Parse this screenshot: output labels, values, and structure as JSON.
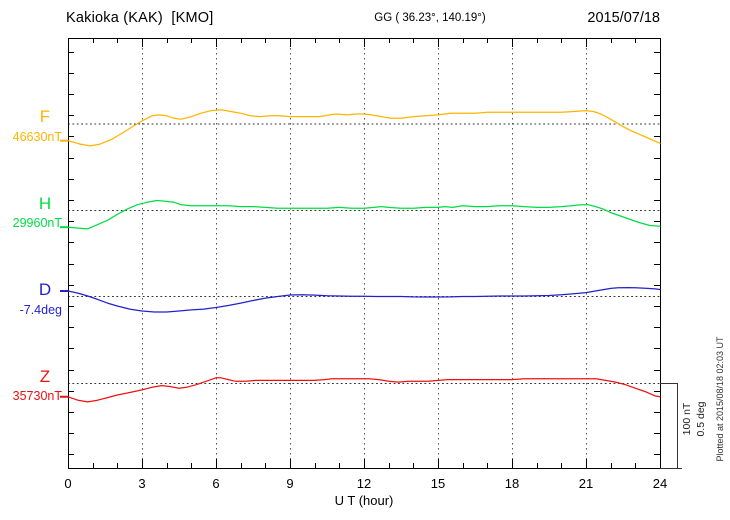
{
  "header": {
    "station": "Kakioka (KAK)  [KMO]",
    "coordinates": "GG ( 36.23°, 140.19°)",
    "date": "2015/07/18"
  },
  "xaxis": {
    "label": "U T (hour)"
  },
  "scalebar": {
    "scale_nt": "100 nT",
    "scale_deg": "0.5 deg"
  },
  "plotted_at": "Plotted at 2015/08/18 02:03 UT",
  "chart_data": {
    "type": "line",
    "title": "Kakioka (KAK) [KMO] magnetogram 2015/07/18",
    "xlabel": "U T (hour)",
    "x_range": [
      0,
      24
    ],
    "x_ticks": [
      0,
      3,
      6,
      9,
      12,
      15,
      18,
      21,
      24
    ],
    "grid": "dotted vertical gridlines every 3 h; dotted horizontal baseline per component",
    "legend_position": "left margin labels",
    "scale_per_division": {
      "nT": 100,
      "deg": 0.5
    },
    "series": [
      {
        "name": "F",
        "label": "F",
        "value_label": "46630nT",
        "baseline_value": 46630,
        "unit": "nT",
        "color": "#ffb400",
        "points": [
          [
            0,
            -20
          ],
          [
            0.5,
            -24
          ],
          [
            0.9,
            -26
          ],
          [
            1.3,
            -24
          ],
          [
            1.8,
            -18
          ],
          [
            2.2,
            -11
          ],
          [
            2.6,
            -4
          ],
          [
            3,
            3
          ],
          [
            3.4,
            9
          ],
          [
            3.7,
            10
          ],
          [
            4,
            9
          ],
          [
            4.3,
            6
          ],
          [
            4.6,
            5
          ],
          [
            5,
            8
          ],
          [
            5.4,
            12
          ],
          [
            5.8,
            15
          ],
          [
            6.2,
            16
          ],
          [
            6.6,
            14
          ],
          [
            7,
            12
          ],
          [
            7.4,
            9
          ],
          [
            7.8,
            8
          ],
          [
            8.2,
            9
          ],
          [
            8.6,
            9
          ],
          [
            9,
            8
          ],
          [
            9.4,
            8
          ],
          [
            9.8,
            8
          ],
          [
            10.2,
            8
          ],
          [
            10.6,
            10
          ],
          [
            10.9,
            11
          ],
          [
            11.3,
            10
          ],
          [
            11.7,
            11
          ],
          [
            12,
            11
          ],
          [
            12.3,
            10
          ],
          [
            12.7,
            8
          ],
          [
            13.1,
            6
          ],
          [
            13.5,
            6
          ],
          [
            14,
            8
          ],
          [
            14.5,
            9
          ],
          [
            15,
            10
          ],
          [
            15.5,
            12
          ],
          [
            16,
            12
          ],
          [
            16.5,
            12
          ],
          [
            17,
            13
          ],
          [
            17.5,
            13
          ],
          [
            18,
            13
          ],
          [
            18.5,
            13
          ],
          [
            19,
            13
          ],
          [
            19.5,
            13
          ],
          [
            20,
            13
          ],
          [
            20.5,
            14
          ],
          [
            21,
            15
          ],
          [
            21.3,
            14
          ],
          [
            21.6,
            11
          ],
          [
            22,
            5
          ],
          [
            22.4,
            -2
          ],
          [
            22.8,
            -8
          ],
          [
            23.2,
            -13
          ],
          [
            23.6,
            -18
          ],
          [
            24,
            -23
          ]
        ]
      },
      {
        "name": "H",
        "label": "H",
        "value_label": "29960nT",
        "baseline_value": 29960,
        "unit": "nT",
        "color": "#00dd44",
        "points": [
          [
            0,
            -20
          ],
          [
            0.4,
            -21
          ],
          [
            0.8,
            -22
          ],
          [
            1.2,
            -17
          ],
          [
            1.6,
            -12
          ],
          [
            2,
            -5
          ],
          [
            2.4,
            1
          ],
          [
            2.8,
            6
          ],
          [
            3.2,
            9
          ],
          [
            3.6,
            11
          ],
          [
            4,
            10
          ],
          [
            4.3,
            9
          ],
          [
            4.6,
            6
          ],
          [
            5,
            5
          ],
          [
            5.5,
            5
          ],
          [
            6,
            5
          ],
          [
            6.5,
            5
          ],
          [
            7,
            4
          ],
          [
            7.5,
            4
          ],
          [
            8,
            3
          ],
          [
            8.5,
            2
          ],
          [
            9,
            2
          ],
          [
            9.5,
            2
          ],
          [
            10,
            2
          ],
          [
            10.5,
            2
          ],
          [
            11,
            3
          ],
          [
            11.5,
            2
          ],
          [
            12,
            2
          ],
          [
            12.4,
            3
          ],
          [
            12.7,
            4
          ],
          [
            13,
            3
          ],
          [
            13.5,
            2
          ],
          [
            14,
            2
          ],
          [
            14.5,
            3
          ],
          [
            15,
            3
          ],
          [
            15.3,
            4
          ],
          [
            15.6,
            3
          ],
          [
            16,
            5
          ],
          [
            16.5,
            4
          ],
          [
            17,
            4
          ],
          [
            17.5,
            5
          ],
          [
            18,
            5
          ],
          [
            18.5,
            4
          ],
          [
            19,
            3
          ],
          [
            19.5,
            3
          ],
          [
            20,
            4
          ],
          [
            20.4,
            5
          ],
          [
            20.8,
            6
          ],
          [
            21.1,
            6
          ],
          [
            21.4,
            4
          ],
          [
            21.7,
            1
          ],
          [
            22,
            -3
          ],
          [
            22.4,
            -7
          ],
          [
            22.8,
            -11
          ],
          [
            23.2,
            -15
          ],
          [
            23.6,
            -18
          ],
          [
            24,
            -19
          ]
        ]
      },
      {
        "name": "D",
        "label": "D",
        "value_label": "-7.4deg",
        "baseline_value": -7.4,
        "unit": "deg",
        "color": "#2222cc",
        "points": [
          [
            0,
            0.029
          ],
          [
            0.4,
            0.017
          ],
          [
            0.8,
            0
          ],
          [
            1.2,
            -0.02
          ],
          [
            1.6,
            -0.041
          ],
          [
            2,
            -0.058
          ],
          [
            2.5,
            -0.076
          ],
          [
            3,
            -0.087
          ],
          [
            3.5,
            -0.093
          ],
          [
            4,
            -0.093
          ],
          [
            4.5,
            -0.087
          ],
          [
            5,
            -0.081
          ],
          [
            5.5,
            -0.076
          ],
          [
            6,
            -0.067
          ],
          [
            6.5,
            -0.055
          ],
          [
            7,
            -0.041
          ],
          [
            7.5,
            -0.026
          ],
          [
            8,
            -0.012
          ],
          [
            8.5,
            -0.003
          ],
          [
            9,
            0.006
          ],
          [
            9.5,
            0.007
          ],
          [
            10,
            0.005
          ],
          [
            10.5,
            0.001
          ],
          [
            11,
            0
          ],
          [
            11.5,
            -0.001
          ],
          [
            12,
            -0.001
          ],
          [
            12.5,
            -0.003
          ],
          [
            13,
            -0.003
          ],
          [
            13.5,
            -0.003
          ],
          [
            14,
            -0.005
          ],
          [
            14.5,
            -0.006
          ],
          [
            15,
            -0.006
          ],
          [
            15.5,
            -0.005
          ],
          [
            16,
            -0.003
          ],
          [
            16.5,
            -0.003
          ],
          [
            17,
            -0.001
          ],
          [
            17.5,
            0
          ],
          [
            18,
            0
          ],
          [
            18.5,
            0
          ],
          [
            19,
            0.001
          ],
          [
            19.5,
            0.003
          ],
          [
            20,
            0.007
          ],
          [
            20.5,
            0.013
          ],
          [
            21,
            0.02
          ],
          [
            21.5,
            0.032
          ],
          [
            22,
            0.044
          ],
          [
            22.3,
            0.048
          ],
          [
            22.7,
            0.049
          ],
          [
            23,
            0.048
          ],
          [
            23.4,
            0.045
          ],
          [
            23.8,
            0.041
          ],
          [
            24,
            0.038
          ]
        ]
      },
      {
        "name": "Z",
        "label": "Z",
        "value_label": "35730nT",
        "baseline_value": 35730,
        "unit": "nT",
        "color": "#ee1111",
        "points": [
          [
            0,
            -16
          ],
          [
            0.4,
            -20
          ],
          [
            0.8,
            -22
          ],
          [
            1.2,
            -20
          ],
          [
            1.6,
            -17
          ],
          [
            2,
            -14
          ],
          [
            2.5,
            -11
          ],
          [
            3,
            -8
          ],
          [
            3.4,
            -5
          ],
          [
            3.8,
            -3
          ],
          [
            4.1,
            -4
          ],
          [
            4.5,
            -6
          ],
          [
            4.8,
            -5
          ],
          [
            5.2,
            -2
          ],
          [
            5.6,
            2
          ],
          [
            6,
            6
          ],
          [
            6.2,
            6
          ],
          [
            6.5,
            4
          ],
          [
            6.8,
            2
          ],
          [
            7.2,
            2
          ],
          [
            7.6,
            3
          ],
          [
            8,
            3
          ],
          [
            8.5,
            3
          ],
          [
            9,
            3
          ],
          [
            9.5,
            3
          ],
          [
            10,
            3
          ],
          [
            10.4,
            4
          ],
          [
            10.7,
            5
          ],
          [
            11,
            5
          ],
          [
            11.4,
            5
          ],
          [
            11.8,
            5
          ],
          [
            12.2,
            5
          ],
          [
            12.6,
            4
          ],
          [
            13,
            2
          ],
          [
            13.4,
            1
          ],
          [
            13.8,
            2
          ],
          [
            14.2,
            2
          ],
          [
            14.6,
            2
          ],
          [
            15,
            3
          ],
          [
            15.4,
            4
          ],
          [
            15.8,
            4
          ],
          [
            16.2,
            4
          ],
          [
            16.6,
            4
          ],
          [
            17,
            4
          ],
          [
            17.5,
            4
          ],
          [
            18,
            4
          ],
          [
            18.5,
            5
          ],
          [
            19,
            5
          ],
          [
            19.5,
            5
          ],
          [
            20,
            5
          ],
          [
            20.5,
            5
          ],
          [
            21,
            5
          ],
          [
            21.4,
            5
          ],
          [
            21.8,
            3
          ],
          [
            22.2,
            1
          ],
          [
            22.6,
            -2
          ],
          [
            23,
            -6
          ],
          [
            23.4,
            -10
          ],
          [
            23.8,
            -15
          ],
          [
            24,
            -16
          ]
        ]
      }
    ]
  }
}
